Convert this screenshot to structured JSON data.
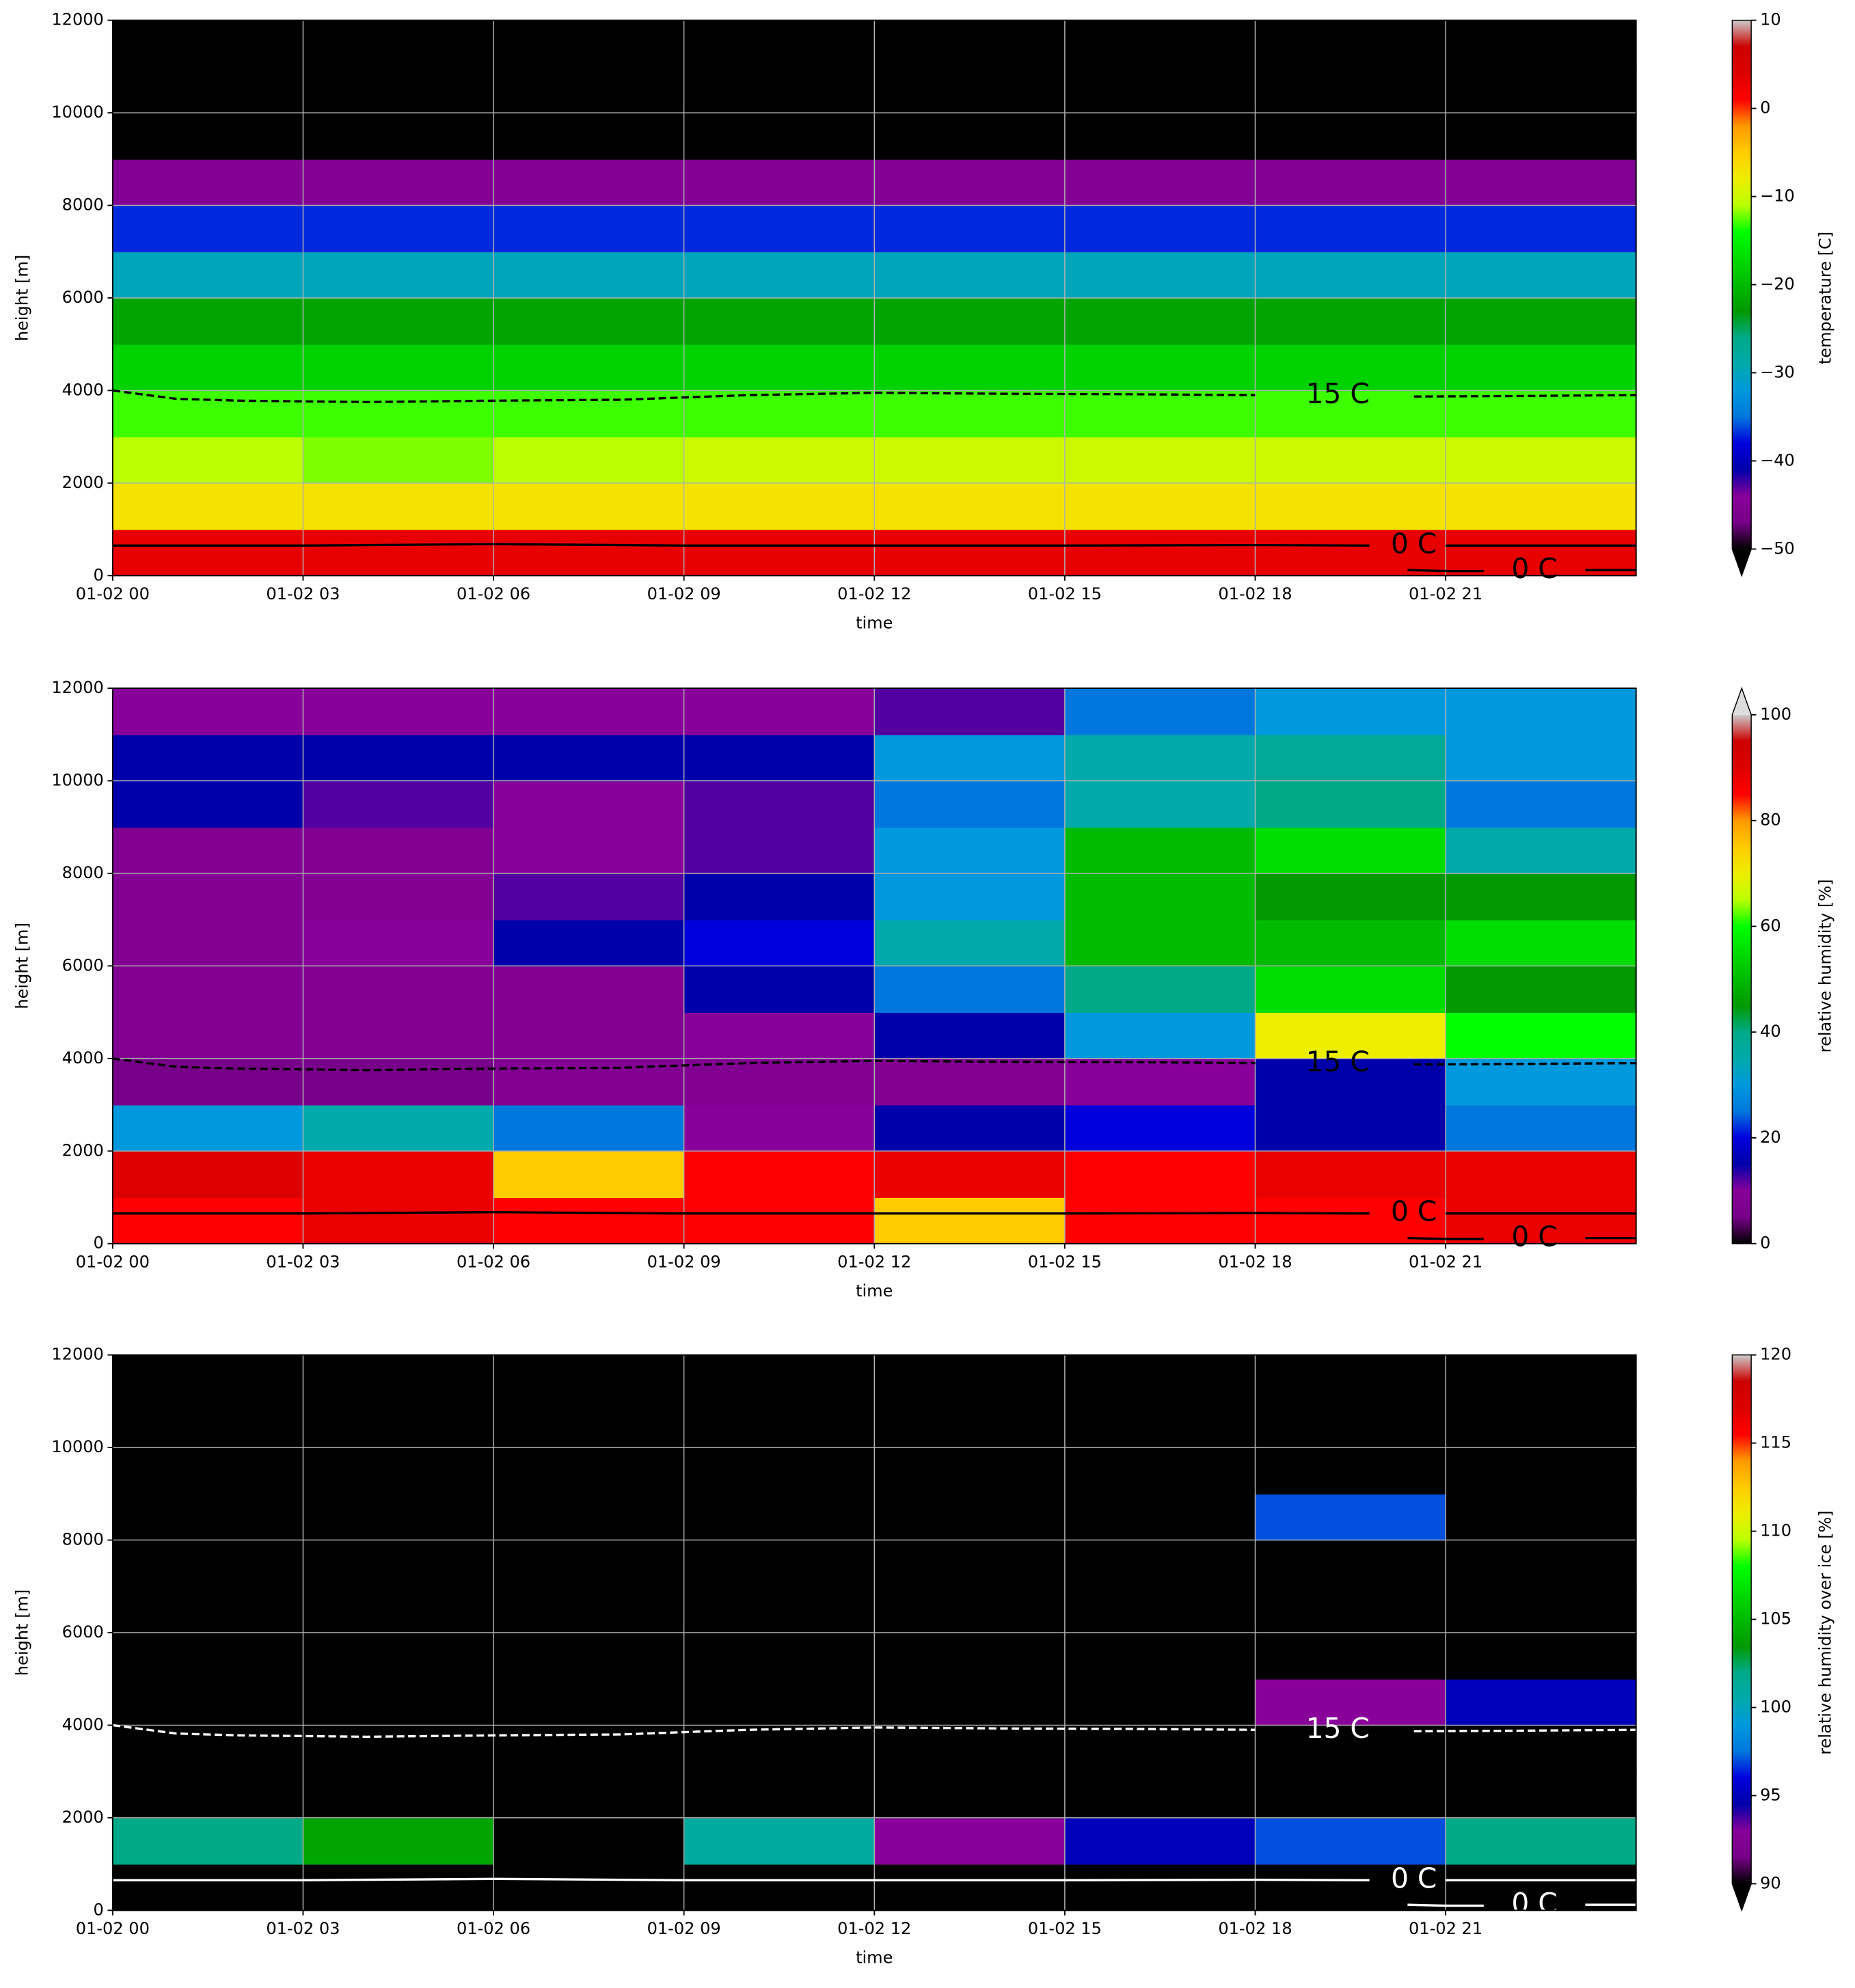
{
  "chart_data": [
    {
      "type": "heatmap",
      "xlabel": "time",
      "ylabel": "height [m]",
      "colorbar_label": "temperature [C]",
      "colormap": "nipy_spectral",
      "extend": "min",
      "xlim": [
        0,
        24
      ],
      "ylim": [
        0,
        12000
      ],
      "clim": [
        -50,
        10
      ],
      "xticks": [
        {
          "value": 0,
          "label": "01-02 00"
        },
        {
          "value": 3,
          "label": "01-02 03"
        },
        {
          "value": 6,
          "label": "01-02 06"
        },
        {
          "value": 9,
          "label": "01-02 09"
        },
        {
          "value": 12,
          "label": "01-02 12"
        },
        {
          "value": 15,
          "label": "01-02 15"
        },
        {
          "value": 18,
          "label": "01-02 18"
        },
        {
          "value": 21,
          "label": "01-02 21"
        }
      ],
      "yticks": [
        0,
        2000,
        4000,
        6000,
        8000,
        10000,
        12000
      ],
      "cticks": [
        {
          "value": -50,
          "label": "−50"
        },
        {
          "value": -40,
          "label": "−40"
        },
        {
          "value": -30,
          "label": "−30"
        },
        {
          "value": -20,
          "label": "−20"
        },
        {
          "value": -10,
          "label": "−10"
        },
        0,
        10
      ],
      "grid": true,
      "x_edges": [
        0,
        3,
        6,
        9,
        12,
        15,
        18,
        21,
        24
      ],
      "y_edges": [
        0,
        1000,
        2000,
        3000,
        4000,
        5000,
        6000,
        7000,
        8000,
        9000,
        10000,
        11000,
        12000
      ],
      "z": [
        [
          3,
          3,
          3,
          3,
          3,
          3,
          3,
          3
        ],
        [
          -7,
          -7,
          -7,
          -7,
          -7,
          -7,
          -7,
          -7
        ],
        [
          -11,
          -12,
          -11,
          -10,
          -10,
          -10,
          -10,
          -10
        ],
        [
          -13,
          -13,
          -13,
          -13,
          -13,
          -13,
          -13,
          -13
        ],
        [
          -18,
          -18,
          -18,
          -18,
          -18,
          -18,
          -18,
          -18
        ],
        [
          -22,
          -22,
          -22,
          -22,
          -22,
          -22,
          -22,
          -22
        ],
        [
          -30,
          -30,
          -30,
          -30,
          -30,
          -30,
          -30,
          -30
        ],
        [
          -37,
          -37,
          -37,
          -37,
          -37,
          -37,
          -37,
          -37
        ],
        [
          -45,
          -45,
          -45,
          -45,
          -45,
          -45,
          -45,
          -45
        ],
        [
          -56,
          -56,
          -56,
          -56,
          -56,
          -56,
          -56,
          -56
        ],
        [
          -56,
          -56,
          -56,
          -56,
          -56,
          -56,
          -56,
          -56
        ],
        [
          -56,
          -56,
          -56,
          -56,
          -56,
          -56,
          -56,
          -56
        ]
      ],
      "contours": [
        {
          "label": "15 C",
          "color": "#000000",
          "style": "dashed",
          "x": [
            0,
            1,
            2,
            4,
            6,
            8,
            10,
            12,
            14,
            16,
            18,
            19.3,
            20.5,
            22,
            24
          ],
          "y": [
            4000,
            3820,
            3780,
            3750,
            3780,
            3800,
            3900,
            3950,
            3930,
            3920,
            3900,
            null,
            3870,
            3880,
            3900
          ]
        },
        {
          "label": "0 C",
          "color": "#000000",
          "style": "solid",
          "x": [
            0,
            3,
            6,
            9,
            12,
            15,
            18,
            19.8,
            20.5,
            21,
            24
          ],
          "y": [
            650,
            650,
            680,
            650,
            650,
            650,
            660,
            650,
            null,
            650,
            650
          ]
        },
        {
          "label": "0 C",
          "color": "#000000",
          "style": "solid",
          "x": [
            20.4,
            21,
            21.6,
            22.4,
            23.2,
            24
          ],
          "y": [
            120,
            100,
            100,
            null,
            120,
            120
          ]
        }
      ]
    },
    {
      "type": "heatmap",
      "xlabel": "time",
      "ylabel": "height [m]",
      "colorbar_label": "relative humidity [%]",
      "colormap": "nipy_spectral",
      "extend": "max",
      "xlim": [
        0,
        24
      ],
      "ylim": [
        0,
        12000
      ],
      "clim": [
        0,
        100
      ],
      "xticks": [
        {
          "value": 0,
          "label": "01-02 00"
        },
        {
          "value": 3,
          "label": "01-02 03"
        },
        {
          "value": 6,
          "label": "01-02 06"
        },
        {
          "value": 9,
          "label": "01-02 09"
        },
        {
          "value": 12,
          "label": "01-02 12"
        },
        {
          "value": 15,
          "label": "01-02 15"
        },
        {
          "value": 18,
          "label": "01-02 18"
        },
        {
          "value": 21,
          "label": "01-02 21"
        }
      ],
      "yticks": [
        0,
        2000,
        4000,
        6000,
        8000,
        10000,
        12000
      ],
      "cticks": [
        0,
        20,
        40,
        60,
        80,
        100
      ],
      "grid": true,
      "x_edges": [
        0,
        3,
        6,
        9,
        12,
        15,
        18,
        21,
        24
      ],
      "y_edges": [
        0,
        1000,
        2000,
        3000,
        4000,
        5000,
        6000,
        7000,
        8000,
        9000,
        10000,
        11000,
        12000
      ],
      "z": [
        [
          85,
          88,
          85,
          85,
          75,
          85,
          85,
          88
        ],
        [
          90,
          88,
          75,
          85,
          88,
          85,
          88,
          88
        ],
        [
          30,
          35,
          25,
          10,
          15,
          20,
          15,
          25
        ],
        [
          5,
          5,
          8,
          8,
          8,
          10,
          15,
          30
        ],
        [
          8,
          8,
          8,
          10,
          15,
          30,
          70,
          60
        ],
        [
          8,
          8,
          8,
          15,
          25,
          40,
          55,
          45
        ],
        [
          8,
          10,
          15,
          20,
          35,
          50,
          50,
          55
        ],
        [
          8,
          8,
          12,
          15,
          30,
          50,
          45,
          45
        ],
        [
          8,
          8,
          10,
          12,
          30,
          50,
          55,
          35
        ],
        [
          15,
          12,
          10,
          12,
          25,
          35,
          40,
          25
        ],
        [
          15,
          15,
          15,
          15,
          30,
          35,
          38,
          30
        ],
        [
          10,
          10,
          10,
          10,
          12,
          25,
          30,
          30
        ]
      ],
      "contours": [
        {
          "label": "15 C",
          "color": "#000000",
          "style": "dashed",
          "x": [
            0,
            1,
            2,
            4,
            6,
            8,
            10,
            12,
            14,
            16,
            18,
            19.3,
            20.5,
            22,
            24
          ],
          "y": [
            4000,
            3820,
            3780,
            3750,
            3780,
            3800,
            3900,
            3950,
            3930,
            3920,
            3900,
            null,
            3870,
            3880,
            3900
          ]
        },
        {
          "label": "0 C",
          "color": "#000000",
          "style": "solid",
          "x": [
            0,
            3,
            6,
            9,
            12,
            15,
            18,
            19.8,
            20.5,
            21,
            24
          ],
          "y": [
            650,
            650,
            680,
            650,
            650,
            650,
            660,
            650,
            null,
            650,
            650
          ]
        },
        {
          "label": "0 C",
          "color": "#000000",
          "style": "solid",
          "x": [
            20.4,
            21,
            21.6,
            22.4,
            23.2,
            24
          ],
          "y": [
            120,
            100,
            100,
            null,
            120,
            120
          ]
        }
      ]
    },
    {
      "type": "heatmap",
      "xlabel": "time",
      "ylabel": "height [m]",
      "colorbar_label": "relative humidity over ice [%]",
      "colormap": "nipy_spectral",
      "extend": "min",
      "xlim": [
        0,
        24
      ],
      "ylim": [
        0,
        12000
      ],
      "clim": [
        90,
        120
      ],
      "xticks": [
        {
          "value": 0,
          "label": "01-02 00"
        },
        {
          "value": 3,
          "label": "01-02 03"
        },
        {
          "value": 6,
          "label": "01-02 06"
        },
        {
          "value": 9,
          "label": "01-02 09"
        },
        {
          "value": 12,
          "label": "01-02 12"
        },
        {
          "value": 15,
          "label": "01-02 15"
        },
        {
          "value": 18,
          "label": "01-02 18"
        },
        {
          "value": 21,
          "label": "01-02 21"
        }
      ],
      "yticks": [
        0,
        2000,
        4000,
        6000,
        8000,
        10000,
        12000
      ],
      "cticks": [
        90,
        95,
        100,
        105,
        110,
        115,
        120
      ],
      "grid": true,
      "x_edges": [
        0,
        3,
        6,
        9,
        12,
        15,
        18,
        21,
        24
      ],
      "y_edges": [
        0,
        1000,
        2000,
        3000,
        4000,
        5000,
        6000,
        7000,
        8000,
        9000,
        10000,
        11000,
        12000
      ],
      "z": [
        [
          80,
          80,
          80,
          80,
          80,
          80,
          80,
          80
        ],
        [
          102,
          104,
          85,
          101,
          93,
          95,
          97,
          102
        ],
        [
          80,
          80,
          80,
          80,
          80,
          80,
          80,
          80
        ],
        [
          80,
          80,
          80,
          80,
          80,
          80,
          80,
          80
        ],
        [
          80,
          80,
          80,
          80,
          80,
          80,
          93,
          95
        ],
        [
          80,
          80,
          80,
          80,
          80,
          80,
          80,
          80
        ],
        [
          80,
          80,
          80,
          80,
          80,
          80,
          80,
          80
        ],
        [
          80,
          80,
          80,
          80,
          80,
          80,
          80,
          80
        ],
        [
          80,
          80,
          80,
          80,
          80,
          80,
          97,
          80
        ],
        [
          80,
          80,
          80,
          80,
          80,
          80,
          80,
          80
        ],
        [
          80,
          80,
          80,
          80,
          80,
          80,
          80,
          80
        ],
        [
          80,
          80,
          80,
          80,
          80,
          80,
          80,
          80
        ]
      ],
      "contours": [
        {
          "label": "15 C",
          "color": "#ffffff",
          "style": "dashed",
          "x": [
            0,
            1,
            2,
            4,
            6,
            8,
            10,
            12,
            14,
            16,
            18,
            19.3,
            20.5,
            22,
            24
          ],
          "y": [
            4000,
            3820,
            3780,
            3750,
            3780,
            3800,
            3900,
            3950,
            3930,
            3920,
            3900,
            null,
            3870,
            3880,
            3900
          ]
        },
        {
          "label": "0 C",
          "color": "#ffffff",
          "style": "solid",
          "x": [
            0,
            3,
            6,
            9,
            12,
            15,
            18,
            19.8,
            20.5,
            21,
            24
          ],
          "y": [
            650,
            650,
            680,
            650,
            650,
            650,
            660,
            650,
            null,
            650,
            650
          ]
        },
        {
          "label": "0 C",
          "color": "#ffffff",
          "style": "solid",
          "x": [
            20.4,
            21,
            21.6,
            22.4,
            23.2,
            24
          ],
          "y": [
            120,
            100,
            100,
            null,
            120,
            120
          ]
        }
      ]
    }
  ]
}
